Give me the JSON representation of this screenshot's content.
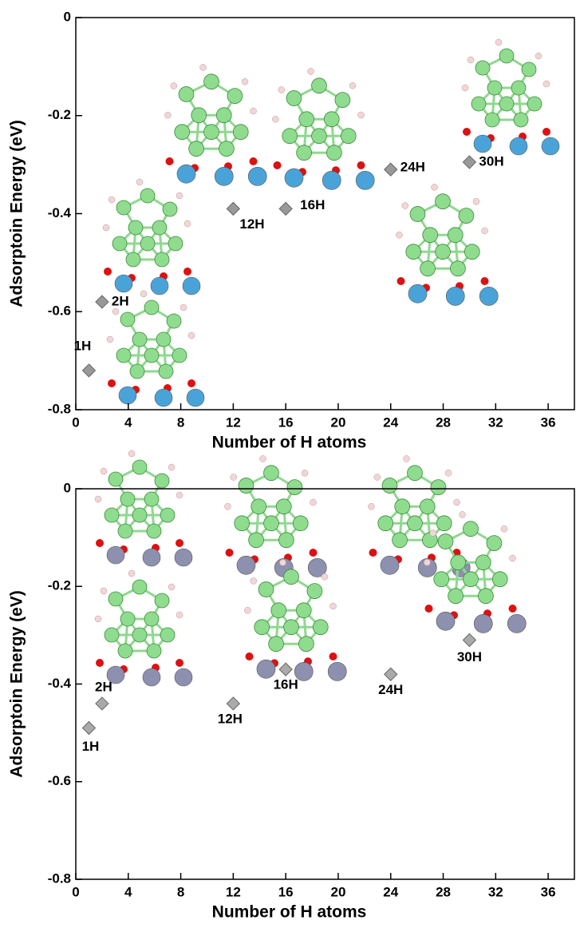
{
  "chart_data": [
    {
      "type": "scatter",
      "x_label": "Number of H atoms",
      "y_label": "Adsorptoin Energy (eV)",
      "x": [
        1,
        2,
        12,
        16,
        24,
        30
      ],
      "values": [
        -0.72,
        -0.58,
        -0.39,
        -0.39,
        -0.31,
        -0.295
      ],
      "point_labels": [
        "1H",
        "2H",
        "12H",
        "16H",
        "24H",
        "30H"
      ],
      "color": "#999999",
      "xlim": [
        0,
        38
      ],
      "ylim": [
        -0.8,
        0
      ],
      "xticks": [
        0,
        4,
        8,
        12,
        16,
        20,
        24,
        28,
        32,
        36
      ],
      "yticks": [
        0,
        -0.2,
        -0.4,
        -0.6,
        -0.8
      ]
    },
    {
      "type": "scatter",
      "x_label": "Number of H atoms",
      "y_label": "Adsorptoin Energy (eV)",
      "x": [
        1,
        2,
        12,
        16,
        24,
        30
      ],
      "values": [
        -0.49,
        -0.44,
        -0.44,
        -0.37,
        -0.38,
        -0.31
      ],
      "point_labels": [
        "1H",
        "2H",
        "12H",
        "16H",
        "24H",
        "30H"
      ],
      "color": "#aaaaaa",
      "xlim": [
        0,
        38
      ],
      "ylim": [
        -0.8,
        0
      ],
      "xticks": [
        0,
        4,
        8,
        12,
        16,
        20,
        24,
        28,
        32,
        36
      ],
      "yticks": [
        0,
        -0.2,
        -0.4,
        -0.6,
        -0.8
      ]
    }
  ]
}
